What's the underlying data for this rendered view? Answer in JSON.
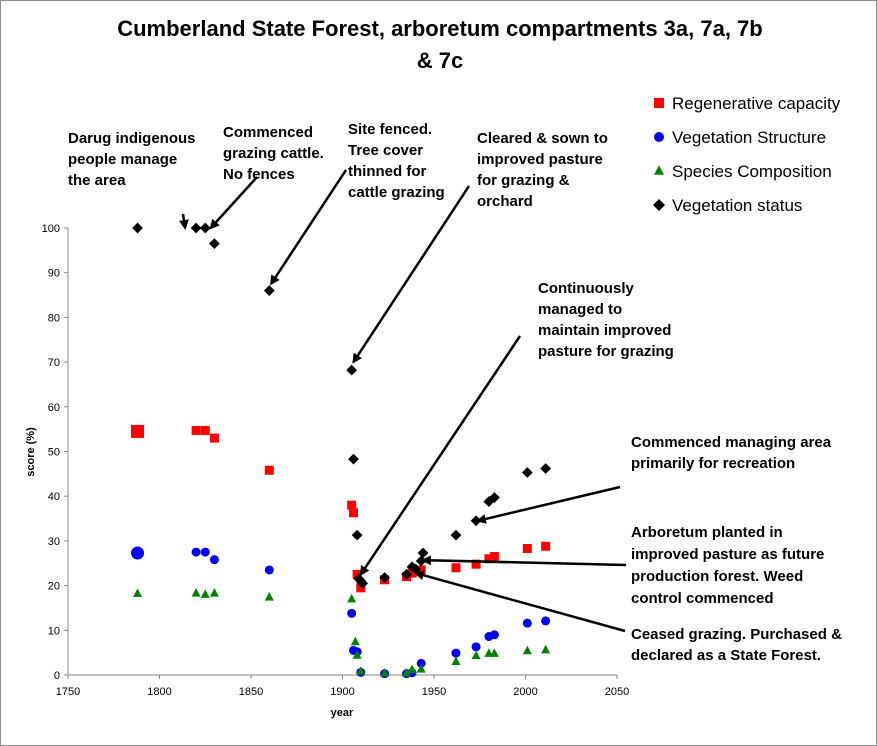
{
  "chart_data": {
    "type": "scatter",
    "title": [
      "Cumberland State Forest, arboretum compartments 3a, 7a, 7b",
      "& 7c"
    ],
    "xlabel": "year",
    "ylabel": "score (%)",
    "xlim": [
      1750,
      2050
    ],
    "ylim": [
      0,
      100
    ],
    "xticks": [
      "1750",
      "1800",
      "1850",
      "1900",
      "1950",
      "2000",
      "2050"
    ],
    "yticks": [
      "0",
      "10",
      "20",
      "30",
      "40",
      "50",
      "60",
      "70",
      "80",
      "90",
      "100"
    ],
    "grid": false,
    "legend_position": "top-right",
    "series": [
      {
        "name": "Regenerative capacity",
        "color": "#ff0000",
        "marker": "square",
        "points": [
          [
            1788,
            54.5
          ],
          [
            1820,
            54.7
          ],
          [
            1825,
            54.7
          ],
          [
            1830,
            53
          ],
          [
            1860,
            45.8
          ],
          [
            1905,
            38
          ],
          [
            1906,
            36.3
          ],
          [
            1908,
            22.5
          ],
          [
            1910,
            19.5
          ],
          [
            1923,
            21.3
          ],
          [
            1935,
            22
          ],
          [
            1938,
            22.8
          ],
          [
            1941,
            23.1
          ],
          [
            1943,
            23.5
          ],
          [
            1962,
            24
          ],
          [
            1973,
            24.8
          ],
          [
            1980,
            26
          ],
          [
            1983,
            26.5
          ],
          [
            2001,
            28.3
          ],
          [
            2011,
            28.8
          ]
        ]
      },
      {
        "name": "Vegetation Structure",
        "color": "#0000ee",
        "marker": "circle",
        "points": [
          [
            1788,
            27.3
          ],
          [
            1820,
            27.5
          ],
          [
            1825,
            27.5
          ],
          [
            1830,
            25.8
          ],
          [
            1860,
            23.5
          ],
          [
            1905,
            13.8
          ],
          [
            1906,
            5.5
          ],
          [
            1908,
            5.2
          ],
          [
            1910,
            0.6
          ],
          [
            1923,
            0.3
          ],
          [
            1935,
            0.3
          ],
          [
            1938,
            0.5
          ],
          [
            1943,
            2.6
          ],
          [
            1962,
            4.9
          ],
          [
            1973,
            6.3
          ],
          [
            1980,
            8.6
          ],
          [
            1983,
            9
          ],
          [
            2001,
            11.6
          ],
          [
            2011,
            12.1
          ]
        ]
      },
      {
        "name": "Species Composition",
        "color": "#008000",
        "marker": "triangle",
        "points": [
          [
            1788,
            18.2
          ],
          [
            1820,
            18.3
          ],
          [
            1825,
            18
          ],
          [
            1830,
            18.3
          ],
          [
            1860,
            17.4
          ],
          [
            1905,
            17
          ],
          [
            1907,
            7.4
          ],
          [
            1908,
            4.4
          ],
          [
            1910,
            0.8
          ],
          [
            1923,
            0.4
          ],
          [
            1935,
            0.4
          ],
          [
            1938,
            1.2
          ],
          [
            1943,
            1.3
          ],
          [
            1962,
            3
          ],
          [
            1973,
            4.3
          ],
          [
            1980,
            4.8
          ],
          [
            1983,
            4.8
          ],
          [
            2001,
            5.4
          ],
          [
            2011,
            5.6
          ]
        ]
      },
      {
        "name": "Vegetation status",
        "color": "#000000",
        "marker": "diamond",
        "points": [
          [
            1788,
            100
          ],
          [
            1820,
            100
          ],
          [
            1825,
            100
          ],
          [
            1830,
            96.5
          ],
          [
            1860,
            86
          ],
          [
            1905,
            68.2
          ],
          [
            1906,
            48.3
          ],
          [
            1908,
            31.3
          ],
          [
            1909,
            21.5
          ],
          [
            1910,
            21
          ],
          [
            1911,
            20.5
          ],
          [
            1923,
            21.8
          ],
          [
            1935,
            22.5
          ],
          [
            1938,
            24.2
          ],
          [
            1940,
            23.7
          ],
          [
            1943,
            25.5
          ],
          [
            1944,
            27.3
          ],
          [
            1962,
            31.3
          ],
          [
            1973,
            34.5
          ],
          [
            1980,
            38.8
          ],
          [
            1983,
            39.7
          ],
          [
            2001,
            45.3
          ],
          [
            2011,
            46.2
          ]
        ]
      }
    ],
    "annotations": [
      {
        "lines": [
          "Darug indigenous",
          "people manage",
          "the area"
        ],
        "arrow_to": [
          1814,
          100
        ]
      },
      {
        "lines": [
          "Commenced",
          "grazing cattle.",
          "No fences"
        ],
        "arrow_to": [
          1828,
          100
        ]
      },
      {
        "lines": [
          "Site fenced.",
          "Tree cover",
          "thinned for",
          "cattle grazing"
        ],
        "arrow_to": [
          1861,
          87.5
        ]
      },
      {
        "lines": [
          "Cleared & sown to",
          "improved pasture",
          "for grazing &",
          "orchard"
        ],
        "arrow_to": [
          1906,
          70
        ]
      },
      {
        "lines": [
          "Continuously",
          "managed to",
          "maintain improved",
          "pasture for grazing"
        ],
        "arrow_to": [
          1910,
          22.5
        ]
      },
      {
        "lines": [
          "Commenced managing area",
          "primarily for recreation"
        ],
        "arrow_to": [
          1974,
          34.5
        ]
      },
      {
        "lines": [
          "Arboretum planted in",
          "improved pasture as future",
          "production forest. Weed",
          "control commenced"
        ],
        "arrow_to": [
          1944,
          25.7
        ]
      },
      {
        "lines": [
          "Ceased grazing. Purchased &",
          "declared as a State Forest."
        ],
        "arrow_to": [
          1940,
          22.8
        ]
      }
    ]
  }
}
